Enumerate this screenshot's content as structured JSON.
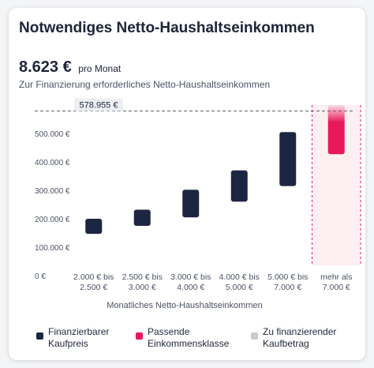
{
  "header": {
    "title": "Notwendiges Netto-Haushaltseinkommen",
    "amount": "8.623 €",
    "amount_unit": "pro Monat",
    "subtitle": "Zur Finanzierung erforderliches Netto-Haushaltseinkommen"
  },
  "legend": [
    {
      "label": "Finanzierbarer Kaufpreis",
      "color": "#1d2640"
    },
    {
      "label": "Passende Einkommensklasse",
      "color": "#e8185a"
    },
    {
      "label": "Zu finanzierender Kaufbetrag",
      "color": "#c9cbd3"
    }
  ],
  "chart_data": {
    "type": "bar",
    "title": "",
    "xlabel": "Monatliches Netto-Haushaltseinkommen",
    "ylabel": "",
    "ylim": [
      0,
      600000
    ],
    "yticks": [
      0,
      100000,
      200000,
      300000,
      400000,
      500000
    ],
    "ytick_labels": [
      "0 €",
      "100.000 €",
      "200.000 €",
      "300.000 €",
      "400.000 €",
      "500.000 €"
    ],
    "categories": [
      [
        "2.000 € bis",
        "2.500 €"
      ],
      [
        "2.500 € bis",
        "3.000 €"
      ],
      [
        "3.000 € bis",
        "4.000 €"
      ],
      [
        "4.000 € bis",
        "5.000 €"
      ],
      [
        "5.000 € bis",
        "7.000 €"
      ],
      [
        "mehr als",
        "7.000 €"
      ]
    ],
    "ranges": [
      [
        147000,
        200000
      ],
      [
        175000,
        232000
      ],
      [
        205000,
        302000
      ],
      [
        260000,
        370000
      ],
      [
        315000,
        505000
      ],
      [
        427000,
        600000
      ]
    ],
    "highlight_index": 5,
    "reference_line": {
      "value": 578955,
      "label": "578.955 €"
    },
    "colors": {
      "bar": "#1d2640",
      "highlight": "#e8185a",
      "highlight_bg": "#fdeff2",
      "reference": "#555b69"
    }
  }
}
